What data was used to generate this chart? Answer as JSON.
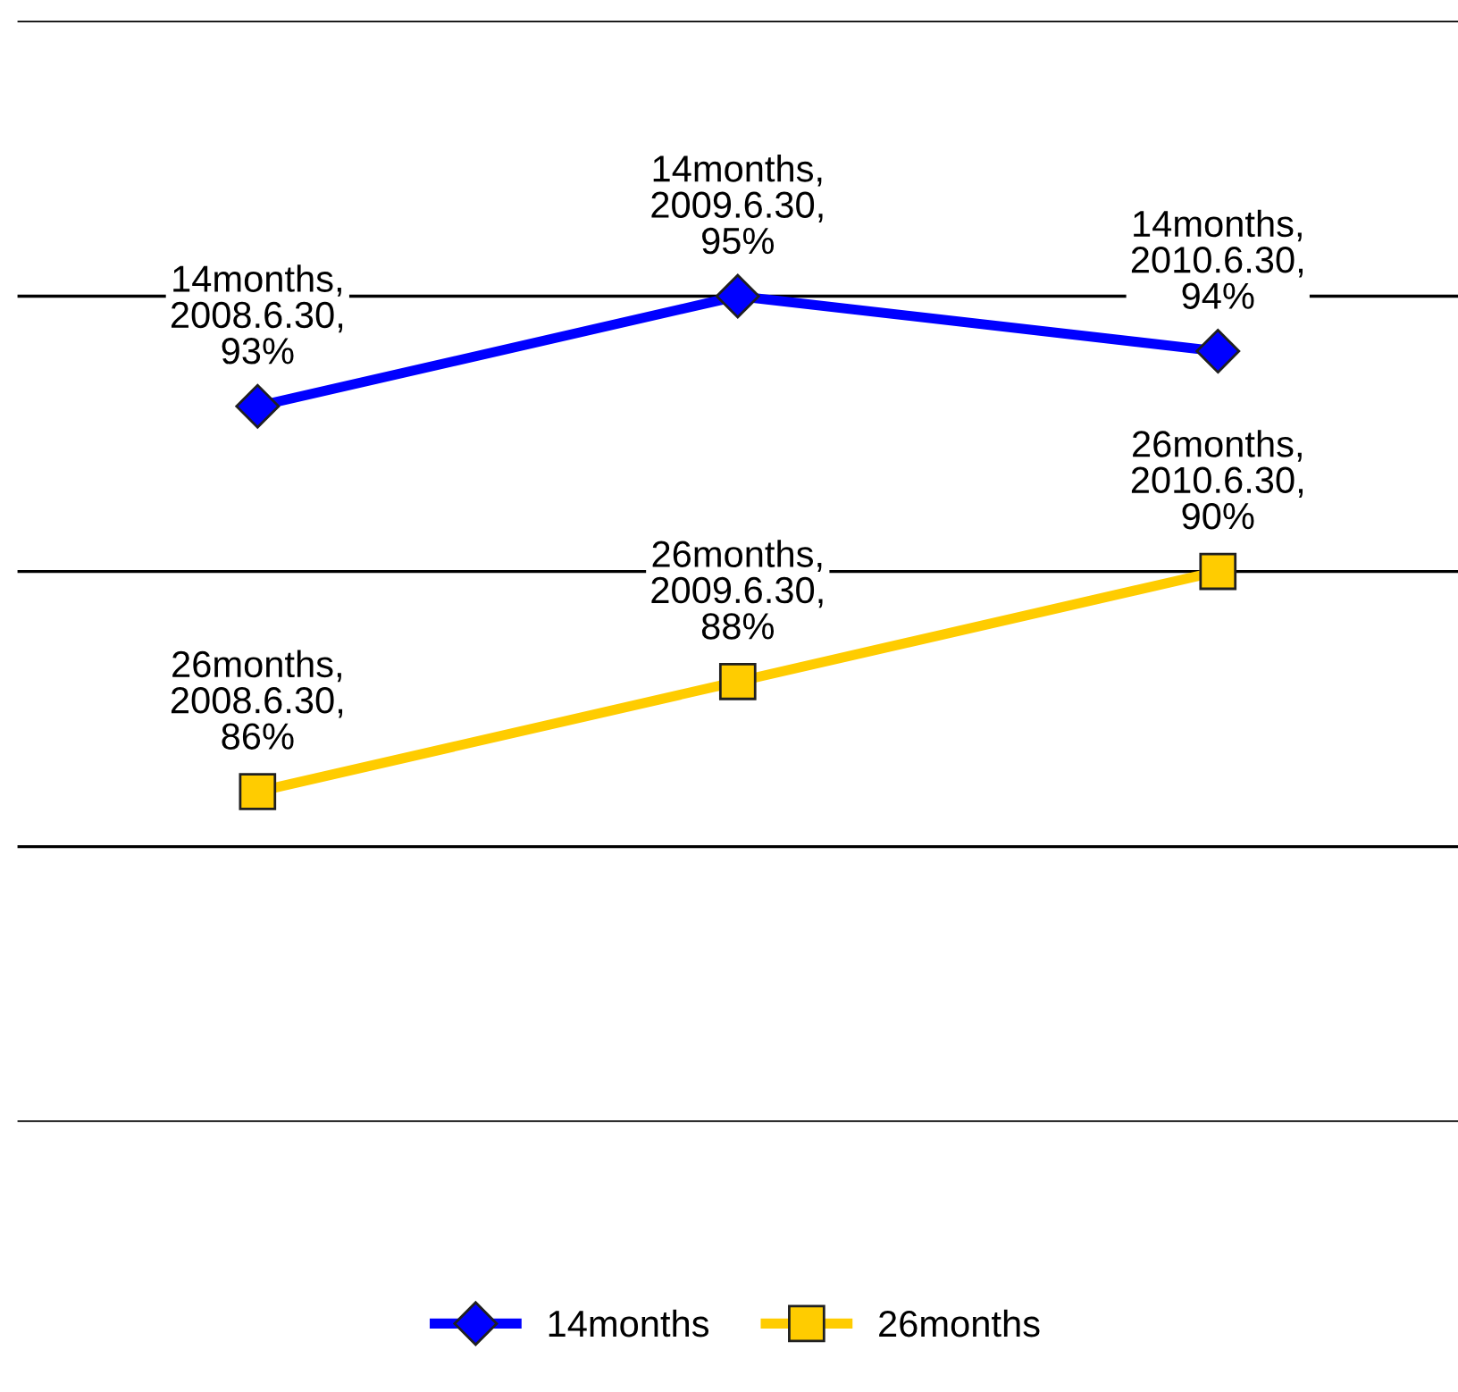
{
  "chart_data": {
    "type": "line",
    "categories": [
      null,
      null,
      null
    ],
    "series": [
      {
        "name": "14months",
        "color": "#0000ff",
        "marker": "diamond",
        "values": [
          93,
          95,
          94
        ],
        "value_labels": [
          "14months,\n2008.6.30,\n93%",
          "14months,\n2009.6.30,\n95%",
          "14months,\n2010.6.30,\n94%"
        ]
      },
      {
        "name": "26months",
        "color": "#ffcc00",
        "marker": "square",
        "values": [
          86,
          88,
          90
        ],
        "value_labels": [
          "26months,\n2008.6.30,\n86%",
          "26months,\n2009.6.30,\n88%",
          "26months,\n2010.6.30,\n90%"
        ]
      }
    ],
    "ylim": [
      80,
      100
    ],
    "yticks": [
      {
        "value": 80,
        "label": null
      },
      {
        "value": 85,
        "label": null
      },
      {
        "value": 90,
        "label": null
      },
      {
        "value": 95,
        "label": null
      },
      {
        "value": 100,
        "label": null
      }
    ],
    "grid": "y",
    "tick_labels": false,
    "legend": "bottom",
    "line_style": "solid"
  }
}
